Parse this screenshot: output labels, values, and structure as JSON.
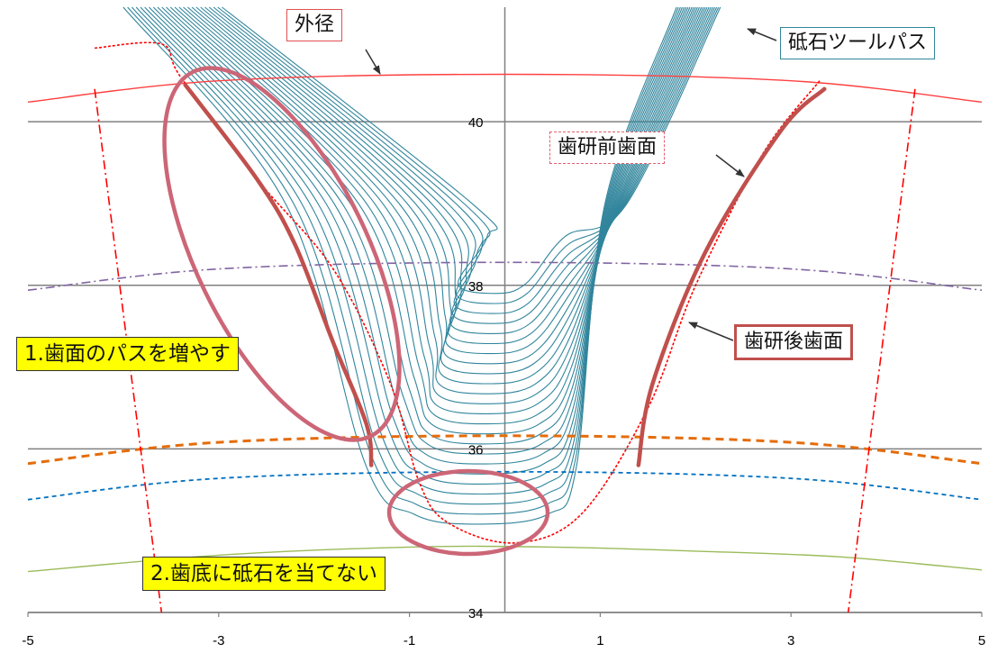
{
  "chart_data": {
    "type": "line",
    "xlim": [
      -5,
      5
    ],
    "ylim": [
      34,
      41.4
    ],
    "x_ticks": [
      -5,
      -3,
      -1,
      1,
      3,
      5
    ],
    "y_ticks": [
      34,
      36,
      38,
      40
    ],
    "grid": "horizontal",
    "colors": {
      "outer_diameter": "#ff4040",
      "pre_grind_flank": "#ff0000",
      "post_grind_flank": "#c0504d",
      "wheel_path": "#31859c",
      "purple_circle": "#8064a2",
      "orange_circle": "#e46c0a",
      "blue_circle": "#0070c0",
      "green_root": "#9bbb59",
      "ellipse": "#cc6677",
      "note_bg": "#ffff00"
    },
    "series": [
      {
        "name": "外径",
        "style": "solid",
        "points": [
          [
            -5,
            40.24
          ],
          [
            -3,
            40.5
          ],
          [
            0,
            40.58
          ],
          [
            3,
            40.5
          ],
          [
            5,
            40.24
          ]
        ]
      },
      {
        "style": "dash-dot",
        "points": [
          [
            -5,
            37.94
          ],
          [
            -3,
            38.2
          ],
          [
            0,
            38.28
          ],
          [
            3,
            38.2
          ],
          [
            5,
            37.94
          ]
        ]
      },
      {
        "style": "dashed",
        "points": [
          [
            -5,
            35.82
          ],
          [
            -3,
            36.08
          ],
          [
            0,
            36.16
          ],
          [
            3,
            36.08
          ],
          [
            5,
            35.82
          ]
        ]
      },
      {
        "style": "dashed",
        "points": [
          [
            -5,
            35.38
          ],
          [
            -3,
            35.64
          ],
          [
            0,
            35.72
          ],
          [
            3,
            35.64
          ],
          [
            5,
            35.38
          ]
        ]
      },
      {
        "style": "solid",
        "points": [
          [
            -5,
            34.5
          ],
          [
            -3,
            34.7
          ],
          [
            -1,
            34.8
          ],
          [
            0.5,
            34.8
          ],
          [
            2,
            34.75
          ],
          [
            3.5,
            34.68
          ],
          [
            5,
            34.52
          ]
        ]
      },
      {
        "name": "歯研前歯面",
        "style": "dotted",
        "points": [
          [
            -4.3,
            40.9
          ],
          [
            -3.6,
            40.95
          ],
          [
            -3.4,
            40.55
          ],
          [
            -2.6,
            39.3
          ],
          [
            -1.8,
            38.2
          ],
          [
            -1.2,
            36.8
          ],
          [
            -0.9,
            35.6
          ],
          [
            -0.6,
            35.1
          ],
          [
            0.1,
            34.85
          ],
          [
            0.8,
            35.2
          ],
          [
            1.5,
            36.5
          ],
          [
            2.0,
            38.0
          ],
          [
            2.7,
            39.6
          ],
          [
            3.3,
            40.5
          ]
        ]
      },
      {
        "name": "歯研後歯面",
        "style": "solid-thick",
        "points": [
          [
            -3.35,
            40.45
          ],
          [
            -2.6,
            39.3
          ],
          [
            -2.2,
            38.5
          ],
          [
            -1.8,
            37.3
          ],
          [
            -1.45,
            36.3
          ],
          [
            -1.4,
            35.8
          ]
        ]
      },
      {
        "name": "歯研後歯面",
        "style": "solid-thick",
        "points": [
          [
            1.4,
            35.8
          ],
          [
            1.55,
            36.8
          ],
          [
            2.1,
            38.4
          ],
          [
            2.9,
            39.9
          ],
          [
            3.35,
            40.4
          ]
        ]
      },
      {
        "style": "dash-dot",
        "points": [
          [
            -4.3,
            40.4
          ],
          [
            -3.6,
            34.0
          ]
        ]
      },
      {
        "style": "dash-dot",
        "points": [
          [
            4.3,
            40.4
          ],
          [
            3.6,
            34.0
          ]
        ]
      }
    ],
    "wheel_paths": {
      "name": "砥石ツールパス",
      "count": 24,
      "bottom_y_range": [
        35.08,
        37.9
      ],
      "bottom_x_range": [
        -0.3,
        -0.1
      ]
    }
  },
  "labels": {
    "outer_diameter": "外径",
    "wheel_path": "砥石ツールパス",
    "pre_grind": "歯研前歯面",
    "post_grind": "歯研後歯面",
    "note1": "1.歯面のパスを増やす",
    "note2": "2.歯底に砥石を当てない"
  }
}
